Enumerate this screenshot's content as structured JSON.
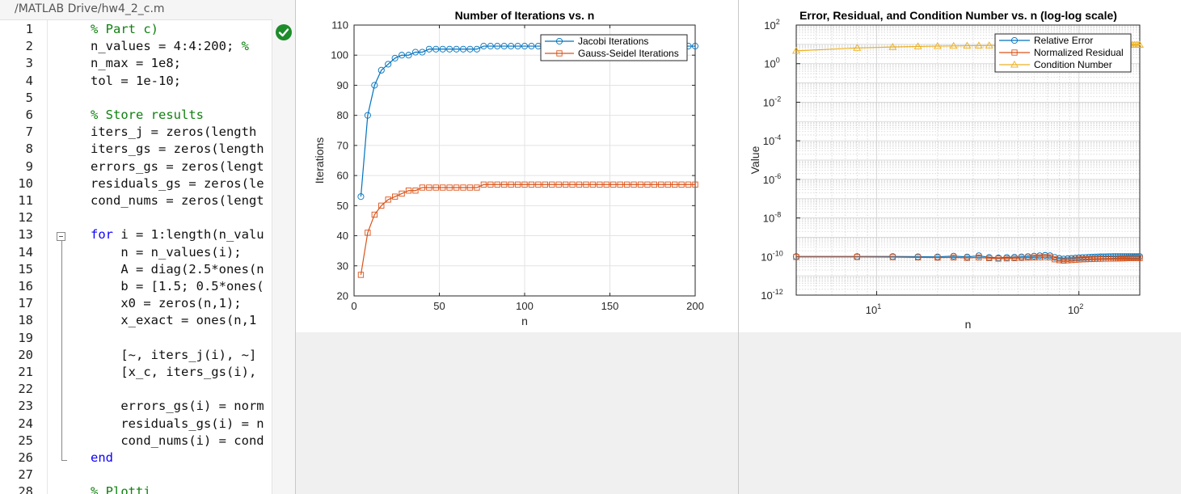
{
  "editor": {
    "file_path": "/MATLAB Drive/hw4_2_c.m",
    "status": "check-icon",
    "lines": [
      {
        "n": "1",
        "parts": [
          {
            "t": "% Part c)",
            "s": "comment"
          }
        ]
      },
      {
        "n": "2",
        "parts": [
          {
            "t": "n_values = 4:4:200; ",
            "s": "code"
          },
          {
            "t": "%",
            "s": "comment"
          }
        ]
      },
      {
        "n": "3",
        "parts": [
          {
            "t": "n_max = 1e8;",
            "s": "code"
          }
        ]
      },
      {
        "n": "4",
        "parts": [
          {
            "t": "tol = 1e-10;",
            "s": "code"
          }
        ]
      },
      {
        "n": "5",
        "parts": []
      },
      {
        "n": "6",
        "parts": [
          {
            "t": "% Store results",
            "s": "comment"
          }
        ]
      },
      {
        "n": "7",
        "parts": [
          {
            "t": "iters_j = zeros(length",
            "s": "code"
          }
        ]
      },
      {
        "n": "8",
        "parts": [
          {
            "t": "iters_gs = zeros(length",
            "s": "code"
          }
        ]
      },
      {
        "n": "9",
        "parts": [
          {
            "t": "errors_gs = zeros(lengt",
            "s": "code"
          }
        ]
      },
      {
        "n": "10",
        "parts": [
          {
            "t": "residuals_gs = zeros(le",
            "s": "code"
          }
        ]
      },
      {
        "n": "11",
        "parts": [
          {
            "t": "cond_nums = zeros(lengt",
            "s": "code"
          }
        ]
      },
      {
        "n": "12",
        "parts": []
      },
      {
        "n": "13",
        "parts": [
          {
            "t": "for",
            "s": "kw"
          },
          {
            "t": " i = 1:length(n_valu",
            "s": "code"
          }
        ]
      },
      {
        "n": "14",
        "parts": [
          {
            "t": "    n = n_values(i);",
            "s": "code"
          }
        ]
      },
      {
        "n": "15",
        "parts": [
          {
            "t": "    A = diag(2.5*ones(n",
            "s": "code"
          }
        ]
      },
      {
        "n": "16",
        "parts": [
          {
            "t": "    b = [1.5; 0.5*ones(",
            "s": "code"
          }
        ]
      },
      {
        "n": "17",
        "parts": [
          {
            "t": "    x0 = zeros(n,1);",
            "s": "code"
          }
        ]
      },
      {
        "n": "18",
        "parts": [
          {
            "t": "    x_exact = ones(n,1",
            "s": "code"
          }
        ]
      },
      {
        "n": "19",
        "parts": []
      },
      {
        "n": "20",
        "parts": [
          {
            "t": "    [~, iters_j(i), ~]",
            "s": "code"
          }
        ]
      },
      {
        "n": "21",
        "parts": [
          {
            "t": "    [x_c, iters_gs(i),",
            "s": "code"
          }
        ]
      },
      {
        "n": "22",
        "parts": []
      },
      {
        "n": "23",
        "parts": [
          {
            "t": "    errors_gs(i) = norm",
            "s": "code"
          }
        ]
      },
      {
        "n": "24",
        "parts": [
          {
            "t": "    residuals_gs(i) = n",
            "s": "code"
          }
        ]
      },
      {
        "n": "25",
        "parts": [
          {
            "t": "    cond_nums(i) = cond",
            "s": "code"
          }
        ]
      },
      {
        "n": "26",
        "parts": [
          {
            "t": "end",
            "s": "kw"
          }
        ]
      },
      {
        "n": "27",
        "parts": []
      },
      {
        "n": "28",
        "parts": [
          {
            "t": "% Plotti",
            "s": "comment"
          }
        ]
      }
    ]
  },
  "colors": {
    "series1": "#0072bd",
    "series2": "#d95319",
    "series3": "#edb120",
    "comment": "#108010",
    "keyword": "#0e00ff"
  },
  "chart_data": [
    {
      "type": "line",
      "title": "Number of Iterations vs. n",
      "xlabel": "n",
      "ylabel": "Iterations",
      "xlim": [
        0,
        200
      ],
      "ylim": [
        20,
        110
      ],
      "xticks": [
        0,
        50,
        100,
        150,
        200
      ],
      "yticks": [
        20,
        30,
        40,
        50,
        60,
        70,
        80,
        90,
        100,
        110
      ],
      "grid": true,
      "legend_position": "top-right",
      "x": [
        4,
        8,
        12,
        16,
        20,
        24,
        28,
        32,
        36,
        40,
        44,
        48,
        52,
        56,
        60,
        64,
        68,
        72,
        76,
        80,
        84,
        88,
        92,
        96,
        100,
        104,
        108,
        112,
        116,
        120,
        124,
        128,
        132,
        136,
        140,
        144,
        148,
        152,
        156,
        160,
        164,
        168,
        172,
        176,
        180,
        184,
        188,
        192,
        196,
        200
      ],
      "series": [
        {
          "name": "Jacobi Iterations",
          "marker": "circle",
          "values": [
            53,
            80,
            90,
            95,
            97,
            99,
            100,
            100,
            101,
            101,
            102,
            102,
            102,
            102,
            102,
            102,
            102,
            102,
            103,
            103,
            103,
            103,
            103,
            103,
            103,
            103,
            103,
            103,
            103,
            103,
            103,
            103,
            103,
            103,
            103,
            103,
            103,
            103,
            103,
            103,
            103,
            103,
            103,
            103,
            103,
            103,
            103,
            103,
            103,
            103
          ]
        },
        {
          "name": "Gauss-Seidel Iterations",
          "marker": "square",
          "values": [
            27,
            41,
            47,
            50,
            52,
            53,
            54,
            55,
            55,
            56,
            56,
            56,
            56,
            56,
            56,
            56,
            56,
            56,
            57,
            57,
            57,
            57,
            57,
            57,
            57,
            57,
            57,
            57,
            57,
            57,
            57,
            57,
            57,
            57,
            57,
            57,
            57,
            57,
            57,
            57,
            57,
            57,
            57,
            57,
            57,
            57,
            57,
            57,
            57,
            57
          ]
        }
      ]
    },
    {
      "type": "line",
      "title": "Error, Residual, and Condition Number vs. n (log-log scale)",
      "xlabel": "n",
      "ylabel": "Value",
      "xscale": "log",
      "yscale": "log",
      "xlim": [
        4,
        200
      ],
      "ylim": [
        1e-12,
        100
      ],
      "xticks": [
        {
          "base": "10",
          "exp": "1"
        },
        {
          "base": "10",
          "exp": "2"
        }
      ],
      "yticks": [
        {
          "base": "10",
          "exp": "-12"
        },
        {
          "base": "10",
          "exp": "-10"
        },
        {
          "base": "10",
          "exp": "-8"
        },
        {
          "base": "10",
          "exp": "-6"
        },
        {
          "base": "10",
          "exp": "-4"
        },
        {
          "base": "10",
          "exp": "-2"
        },
        {
          "base": "10",
          "exp": "0"
        },
        {
          "base": "10",
          "exp": "2"
        }
      ],
      "grid": true,
      "legend_position": "top-right",
      "x": [
        4,
        8,
        12,
        16,
        20,
        24,
        28,
        32,
        36,
        40,
        44,
        48,
        52,
        56,
        60,
        64,
        68,
        72,
        76,
        80,
        84,
        88,
        92,
        96,
        100,
        104,
        108,
        112,
        116,
        120,
        124,
        128,
        132,
        136,
        140,
        144,
        148,
        152,
        156,
        160,
        164,
        168,
        172,
        176,
        180,
        184,
        188,
        192,
        196,
        200
      ],
      "series": [
        {
          "name": "Relative Error",
          "marker": "circle",
          "values": [
            1e-10,
            1e-10,
            1e-10,
            9.8e-11,
            9.6e-11,
            1.05e-10,
            9.5e-11,
            1.1e-10,
            9e-11,
            8.5e-11,
            9e-11,
            9.2e-11,
            9.6e-11,
            1e-10,
            1.05e-10,
            1.1e-10,
            1.15e-10,
            1.1e-10,
            9e-11,
            8e-11,
            7.5e-11,
            7.8e-11,
            8e-11,
            8.3e-11,
            8.6e-11,
            8.8e-11,
            9e-11,
            9.2e-11,
            9.4e-11,
            9.5e-11,
            9.6e-11,
            9.7e-11,
            9.8e-11,
            9.8e-11,
            9.9e-11,
            9.9e-11,
            1e-10,
            1e-10,
            1e-10,
            1e-10,
            1e-10,
            1e-10,
            1e-10,
            1e-10,
            1e-10,
            1e-10,
            1e-10,
            1e-10,
            1e-10,
            1e-10
          ]
        },
        {
          "name": "Normalized Residual",
          "marker": "square",
          "values": [
            9.5e-11,
            9.5e-11,
            9.3e-11,
            9e-11,
            8.8e-11,
            9e-11,
            8.5e-11,
            9e-11,
            8.2e-11,
            7.8e-11,
            8e-11,
            8.2e-11,
            8.5e-11,
            8.8e-11,
            9e-11,
            9.2e-11,
            9.4e-11,
            9.2e-11,
            7.2e-11,
            6.5e-11,
            6.2e-11,
            6.4e-11,
            6.6e-11,
            6.8e-11,
            7e-11,
            7.2e-11,
            7.3e-11,
            7.4e-11,
            7.5e-11,
            7.6e-11,
            7.7e-11,
            7.7e-11,
            7.8e-11,
            7.8e-11,
            7.9e-11,
            7.9e-11,
            8e-11,
            8e-11,
            8e-11,
            8.1e-11,
            8.1e-11,
            8.1e-11,
            8.2e-11,
            8.2e-11,
            8.2e-11,
            8.2e-11,
            8.3e-11,
            8.3e-11,
            8.3e-11,
            8.3e-11
          ]
        },
        {
          "name": "Condition Number",
          "marker": "triangle",
          "values": [
            4.6,
            6.5,
            7.3,
            7.8,
            8.1,
            8.3,
            8.5,
            8.6,
            8.7,
            8.8,
            8.85,
            8.9,
            8.95,
            9.0,
            9.0,
            9.05,
            9.1,
            9.1,
            9.15,
            9.15,
            9.2,
            9.2,
            9.2,
            9.2,
            9.25,
            9.25,
            9.25,
            9.25,
            9.3,
            9.3,
            9.3,
            9.3,
            9.3,
            9.3,
            9.3,
            9.3,
            9.35,
            9.35,
            9.35,
            9.35,
            9.35,
            9.35,
            9.35,
            9.35,
            9.35,
            9.35,
            9.35,
            9.35,
            9.35,
            9.35
          ]
        }
      ]
    }
  ]
}
